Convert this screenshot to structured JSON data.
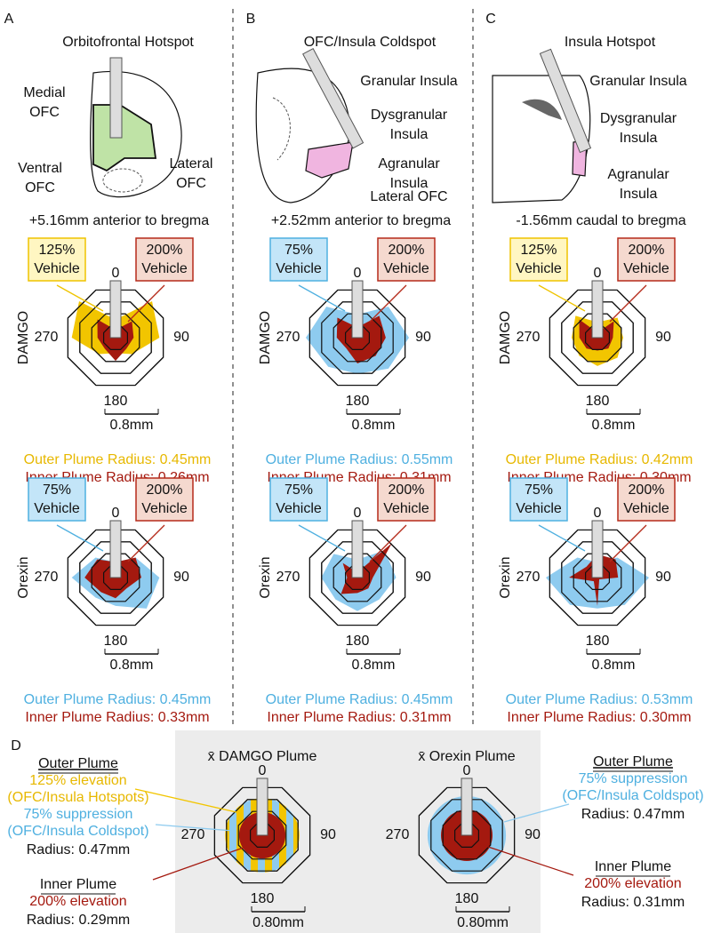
{
  "panels": [
    {
      "letter": "A",
      "title": "Orbitofrontal Hotspot",
      "regions": [
        [
          "Medial",
          "OFC"
        ],
        [
          "Ventral",
          "OFC"
        ],
        [
          "Lateral",
          "OFC"
        ]
      ],
      "coordinate": "+5.16mm anterior to bregma",
      "rows": [
        {
          "drug": "DAMGO",
          "outer_box": [
            "125%",
            "Vehicle"
          ],
          "inner_box": [
            "200%",
            "Vehicle"
          ],
          "scale": "0.8mm",
          "outer_radius": "Outer Plume Radius: 0.45mm",
          "inner_radius": "Inner Plume Radius: 0.26mm"
        },
        {
          "drug": "Orexin",
          "outer_box": [
            "75%",
            "Vehicle"
          ],
          "inner_box": [
            "200%",
            "Vehicle"
          ],
          "scale": "0.8mm",
          "outer_radius": "Outer Plume Radius: 0.45mm",
          "inner_radius": "Inner Plume Radius: 0.33mm"
        }
      ]
    },
    {
      "letter": "B",
      "title": "OFC/Insula Coldspot",
      "regions": [
        [
          "Granular Insula"
        ],
        [
          "Dysgranular",
          "Insula"
        ],
        [
          "Agranular",
          "Insula"
        ],
        [
          "Lateral OFC"
        ]
      ],
      "coordinate": "+2.52mm anterior to bregma",
      "rows": [
        {
          "drug": "DAMGO",
          "outer_box": [
            "75%",
            "Vehicle"
          ],
          "inner_box": [
            "200%",
            "Vehicle"
          ],
          "scale": "0.8mm",
          "outer_radius": "Outer Plume Radius: 0.55mm",
          "inner_radius": "Inner Plume Radius: 0.31mm"
        },
        {
          "drug": "Orexin",
          "outer_box": [
            "75%",
            "Vehicle"
          ],
          "inner_box": [
            "200%",
            "Vehicle"
          ],
          "scale": "0.8mm",
          "outer_radius": "Outer Plume Radius: 0.45mm",
          "inner_radius": "Inner Plume Radius: 0.31mm"
        }
      ]
    },
    {
      "letter": "C",
      "title": "Insula Hotspot",
      "regions": [
        [
          "Granular Insula"
        ],
        [
          "Dysgranular",
          "Insula"
        ],
        [
          "Agranular",
          "Insula"
        ]
      ],
      "coordinate": "-1.56mm caudal to bregma",
      "rows": [
        {
          "drug": "DAMGO",
          "outer_box": [
            "125%",
            "Vehicle"
          ],
          "inner_box": [
            "200%",
            "Vehicle"
          ],
          "scale": "0.8mm",
          "outer_radius": "Outer Plume Radius: 0.42mm",
          "inner_radius": "Inner Plume Radius: 0.30mm"
        },
        {
          "drug": "Orexin",
          "outer_box": [
            "75%",
            "Vehicle"
          ],
          "inner_box": [
            "200%",
            "Vehicle"
          ],
          "scale": "0.8mm",
          "outer_radius": "Outer Plume Radius: 0.53mm",
          "inner_radius": "Inner Plume Radius: 0.30mm"
        }
      ]
    }
  ],
  "angle_labels": [
    "0",
    "90",
    "180",
    "270"
  ],
  "summary": {
    "letter": "D",
    "damgo": {
      "title": "x̄ DAMGO Plume",
      "scale": "0.80mm",
      "outer": {
        "heading": "Outer Plume",
        "lines": [
          "125% elevation",
          "(OFC/Insula Hotspots)",
          "75% suppression",
          "(OFC/Insula Coldspot)"
        ],
        "radius": "Radius: 0.47mm"
      },
      "inner": {
        "heading": "Inner Plume",
        "lines": [
          "200% elevation"
        ],
        "radius": "Radius: 0.29mm"
      }
    },
    "orexin": {
      "title": "x̄ Orexin Plume",
      "scale": "0.80mm",
      "outer": {
        "heading": "Outer Plume",
        "lines": [
          "75% suppression",
          "(OFC/Insula Coldspot)"
        ],
        "radius": "Radius: 0.47mm"
      },
      "inner": {
        "heading": "Inner Plume",
        "lines": [
          "200% elevation"
        ],
        "radius": "Radius: 0.31mm"
      }
    }
  }
}
